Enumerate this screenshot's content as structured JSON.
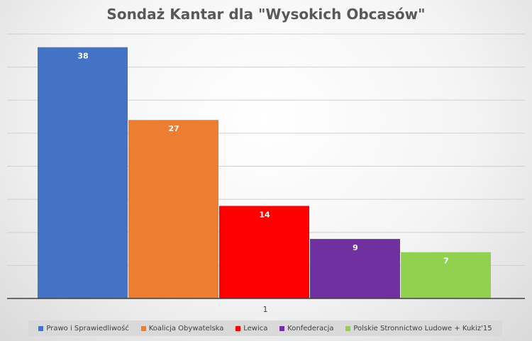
{
  "chart_data": {
    "type": "bar",
    "title": "Sondaż Kantar dla \"Wysokich Obcasów\"",
    "categories": [
      "1"
    ],
    "series": [
      {
        "name": "Prawo i Sprawiedliwość",
        "values": [
          38
        ],
        "color": "#4472C4"
      },
      {
        "name": "Koalicja Obywatelska",
        "values": [
          27
        ],
        "color": "#ED7D31"
      },
      {
        "name": "Lewica",
        "values": [
          14
        ],
        "color": "#FF0000"
      },
      {
        "name": "Konfederacja",
        "values": [
          9
        ],
        "color": "#7030A0"
      },
      {
        "name": "Polskie Stronnictwo Ludowe + Kukiz'15",
        "values": [
          7
        ],
        "color": "#92D050"
      }
    ],
    "ylim": [
      0,
      40
    ],
    "grid": true,
    "legend": "bottom"
  }
}
